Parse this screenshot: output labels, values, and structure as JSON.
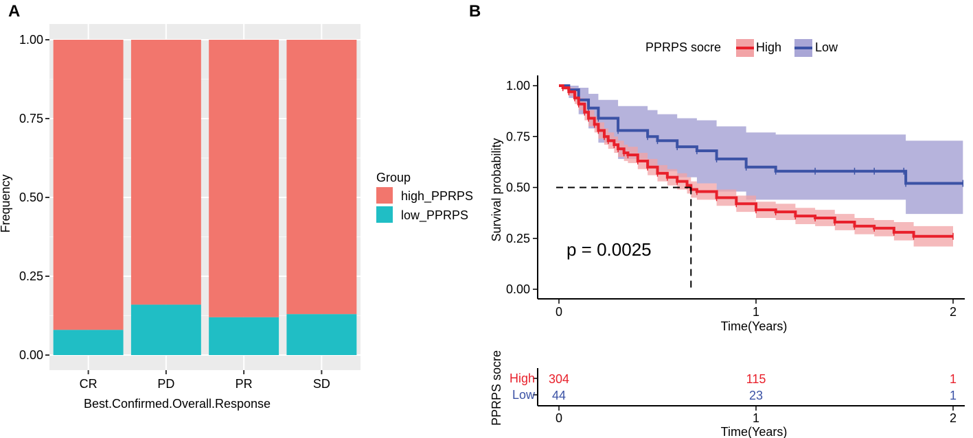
{
  "chart_data": [
    {
      "panel_label": "A",
      "type": "bar",
      "stacked": true,
      "xlabel": "Best.Confirmed.Overall.Response",
      "ylabel": "Frequency",
      "categories": [
        "CR",
        "PD",
        "PR",
        "SD"
      ],
      "series": [
        {
          "name": "low_PPRPS",
          "values": [
            0.08,
            0.16,
            0.12,
            0.13
          ]
        },
        {
          "name": "high_PPRPS",
          "values": [
            0.92,
            0.84,
            0.88,
            0.87
          ]
        }
      ],
      "ylim": [
        0,
        1
      ],
      "yticks": [
        "0.00",
        "0.25",
        "0.50",
        "0.75",
        "1.00"
      ],
      "legend": {
        "title": "Group",
        "position": "right",
        "entries": [
          "high_PPRPS",
          "low_PPRPS"
        ]
      },
      "colors": {
        "high_PPRPS": "#F2766D",
        "low_PPRPS": "#20BEC5",
        "panel_bg": "#EBEBEB",
        "grid": "#FFFFFF"
      }
    },
    {
      "panel_label": "B",
      "type": "line",
      "subtype": "kaplan-meier",
      "legend": {
        "title": "PPRPS socre",
        "position": "top",
        "entries": [
          "High",
          "Low"
        ]
      },
      "xlabel": "Time(Years)",
      "ylabel": "Survival probability",
      "xlim": [
        0,
        2.05
      ],
      "ylim": [
        0,
        1.05
      ],
      "xticks": [
        "0",
        "1",
        "2"
      ],
      "yticks": [
        "0.00",
        "0.25",
        "0.50",
        "0.75",
        "1.00"
      ],
      "p_value_text": "p = 0.0025",
      "median_line": {
        "x": 0.67,
        "y": 0.5
      },
      "series": [
        {
          "name": "High",
          "color": "#E8202B",
          "ci_color": "#F2A3A6",
          "x": [
            0,
            0.02,
            0.05,
            0.08,
            0.1,
            0.13,
            0.15,
            0.18,
            0.2,
            0.23,
            0.25,
            0.28,
            0.3,
            0.33,
            0.35,
            0.4,
            0.45,
            0.5,
            0.55,
            0.6,
            0.65,
            0.67,
            0.7,
            0.8,
            0.9,
            1.0,
            1.1,
            1.2,
            1.3,
            1.4,
            1.5,
            1.6,
            1.7,
            1.8,
            2.0
          ],
          "y": [
            1.0,
            0.99,
            0.97,
            0.94,
            0.91,
            0.87,
            0.84,
            0.81,
            0.78,
            0.75,
            0.73,
            0.71,
            0.69,
            0.67,
            0.66,
            0.63,
            0.6,
            0.57,
            0.55,
            0.53,
            0.51,
            0.49,
            0.48,
            0.45,
            0.42,
            0.39,
            0.38,
            0.36,
            0.35,
            0.33,
            0.31,
            0.3,
            0.28,
            0.26,
            0.26
          ],
          "ci_upper": [
            1.0,
            1.0,
            0.99,
            0.97,
            0.94,
            0.91,
            0.88,
            0.85,
            0.82,
            0.79,
            0.77,
            0.75,
            0.73,
            0.71,
            0.7,
            0.67,
            0.64,
            0.61,
            0.59,
            0.57,
            0.55,
            0.53,
            0.52,
            0.49,
            0.46,
            0.43,
            0.42,
            0.4,
            0.39,
            0.37,
            0.35,
            0.34,
            0.33,
            0.31,
            0.31
          ],
          "ci_lower": [
            1.0,
            0.98,
            0.95,
            0.91,
            0.88,
            0.83,
            0.8,
            0.77,
            0.74,
            0.71,
            0.69,
            0.67,
            0.65,
            0.63,
            0.62,
            0.59,
            0.56,
            0.53,
            0.51,
            0.49,
            0.47,
            0.45,
            0.44,
            0.41,
            0.38,
            0.35,
            0.34,
            0.32,
            0.31,
            0.29,
            0.27,
            0.26,
            0.24,
            0.21,
            0.21
          ]
        },
        {
          "name": "Low",
          "color": "#3B52A5",
          "ci_color": "#A9A6D6",
          "x": [
            0,
            0.05,
            0.1,
            0.15,
            0.2,
            0.3,
            0.45,
            0.5,
            0.6,
            0.7,
            0.8,
            0.95,
            1.1,
            1.3,
            1.5,
            1.6,
            1.75,
            1.76,
            2.05
          ],
          "y": [
            1.0,
            0.98,
            0.93,
            0.89,
            0.84,
            0.78,
            0.75,
            0.73,
            0.7,
            0.68,
            0.64,
            0.6,
            0.58,
            0.58,
            0.58,
            0.58,
            0.58,
            0.52,
            0.52
          ],
          "ci_upper": [
            1.0,
            1.0,
            0.99,
            0.96,
            0.93,
            0.9,
            0.88,
            0.86,
            0.84,
            0.83,
            0.8,
            0.77,
            0.76,
            0.76,
            0.76,
            0.76,
            0.76,
            0.73,
            0.73
          ],
          "ci_lower": [
            1.0,
            0.94,
            0.86,
            0.79,
            0.72,
            0.64,
            0.6,
            0.58,
            0.55,
            0.52,
            0.48,
            0.44,
            0.44,
            0.44,
            0.44,
            0.44,
            0.44,
            0.37,
            0.37
          ]
        }
      ]
    },
    {
      "panel_label": "B-risk-table",
      "type": "table",
      "ylabel": "PPRPS socre",
      "xlabel": "Time(Years)",
      "xticks": [
        "0",
        "1",
        "2"
      ],
      "rows": [
        {
          "label": "High",
          "color": "#E8202B",
          "values": [
            "304",
            "115",
            "1"
          ]
        },
        {
          "label": "Low",
          "color": "#3B52A5",
          "values": [
            "44",
            "23",
            "1"
          ]
        }
      ]
    }
  ]
}
